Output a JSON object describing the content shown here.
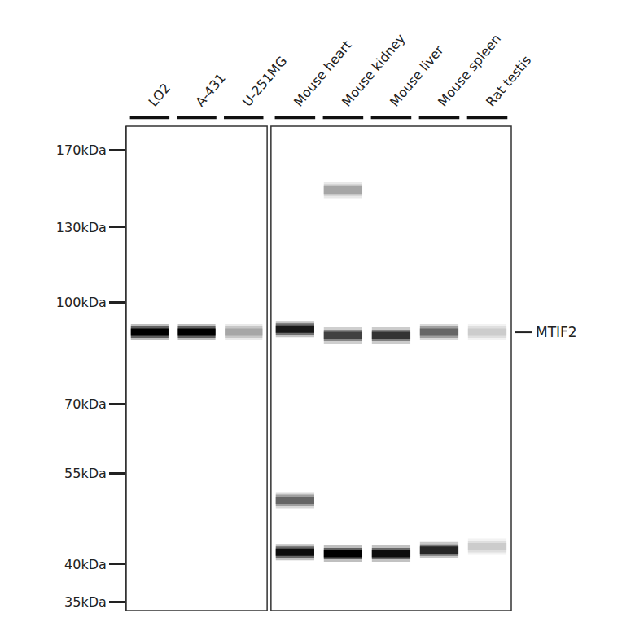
{
  "chart_data": {
    "type": "blot",
    "panels": [
      {
        "categories": [
          "LO2",
          "A-431",
          "U-251MG"
        ]
      },
      {
        "categories": [
          "Mouse heart",
          "Mouse kidney",
          "Mouse liver",
          "Mouse spleen",
          "Rat testis"
        ]
      }
    ],
    "ylim": [
      34,
      185
    ],
    "log": "y",
    "grid": false,
    "yticks": [
      {
        "value": 170,
        "label": "170kDa"
      },
      {
        "value": 130,
        "label": "130kDa"
      },
      {
        "value": 100,
        "label": "100kDa"
      },
      {
        "value": 70,
        "label": "70kDa"
      },
      {
        "value": 55,
        "label": "55kDa"
      },
      {
        "value": 40,
        "label": "40kDa"
      },
      {
        "value": 35,
        "label": "35kDa"
      }
    ],
    "bands": [
      {
        "lane": "LO2",
        "kda": 90,
        "intensity": 1.0
      },
      {
        "lane": "A-431",
        "kda": 90,
        "intensity": 1.0
      },
      {
        "lane": "U-251MG",
        "kda": 90,
        "intensity": 0.35
      },
      {
        "lane": "Mouse heart",
        "kda": 91,
        "intensity": 0.9
      },
      {
        "lane": "Mouse kidney",
        "kda": 89,
        "intensity": 0.75
      },
      {
        "lane": "Mouse liver",
        "kda": 89,
        "intensity": 0.8
      },
      {
        "lane": "Mouse spleen",
        "kda": 90,
        "intensity": 0.6
      },
      {
        "lane": "Rat testis",
        "kda": 90,
        "intensity": 0.2
      },
      {
        "lane": "Mouse kidney",
        "kda": 148,
        "intensity": 0.35
      },
      {
        "lane": "Mouse heart",
        "kda": 50,
        "intensity": 0.6
      },
      {
        "lane": "Mouse heart",
        "kda": 41.7,
        "intensity": 0.95
      },
      {
        "lane": "Mouse kidney",
        "kda": 41.5,
        "intensity": 1.0
      },
      {
        "lane": "Mouse liver",
        "kda": 41.5,
        "intensity": 0.95
      },
      {
        "lane": "Mouse spleen",
        "kda": 42,
        "intensity": 0.85
      },
      {
        "lane": "Rat testis",
        "kda": 42.5,
        "intensity": 0.2
      }
    ],
    "annotations": [
      {
        "text": "MTIF2",
        "kda": 90
      }
    ]
  }
}
